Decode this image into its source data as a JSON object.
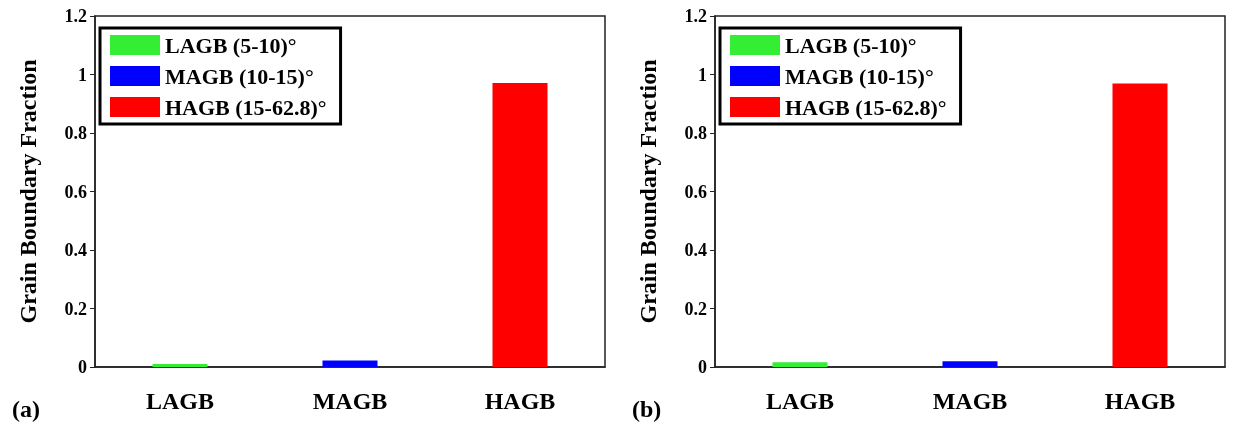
{
  "chart_data": [
    {
      "type": "bar",
      "ylabel": "Grain Boundary Fraction",
      "categories": [
        "LAGB",
        "MAGB",
        "HAGB"
      ],
      "series": [
        {
          "name": "LAGB (5-10)°",
          "color": "#33ee33",
          "values": [
            0.01,
            null,
            null
          ]
        },
        {
          "name": "MAGB (10-15)°",
          "color": "#0000ff",
          "values": [
            null,
            0.022,
            null
          ]
        },
        {
          "name": "HAGB (15-62.8)°",
          "color": "#ff0000",
          "values": [
            null,
            null,
            0.971
          ]
        }
      ],
      "ylim": [
        0,
        1.2
      ],
      "yticks": [
        0,
        0.2,
        0.4,
        0.6,
        0.8,
        1,
        1.2
      ],
      "legend": "top left",
      "annotations": [
        "(a)"
      ]
    },
    {
      "type": "bar",
      "ylabel": "Grain Boundary Fraction",
      "categories": [
        "LAGB",
        "MAGB",
        "HAGB"
      ],
      "series": [
        {
          "name": "LAGB (5-10)°",
          "color": "#33ee33",
          "values": [
            0.016,
            null,
            null
          ]
        },
        {
          "name": "MAGB (10-15)°",
          "color": "#0000ff",
          "values": [
            null,
            0.02,
            null
          ]
        },
        {
          "name": "HAGB (15-62.8)°",
          "color": "#ff0000",
          "values": [
            null,
            null,
            0.969
          ]
        }
      ],
      "ylim": [
        0,
        1.2
      ],
      "yticks": [
        0,
        0.2,
        0.4,
        0.6,
        0.8,
        1,
        1.2
      ],
      "legend": "top left",
      "annotations": [
        "(b)"
      ]
    }
  ]
}
